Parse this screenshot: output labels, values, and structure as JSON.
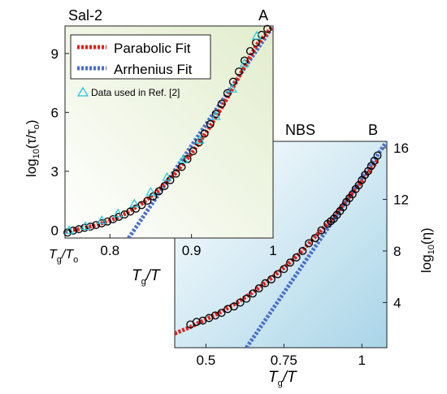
{
  "chart_data": [
    {
      "type": "scatter",
      "panel_label": "A",
      "title": "Sal-2",
      "ylabel": "log10(τ/τo)",
      "ylabel_parts": {
        "base": "log",
        "sub": "10",
        "expr": "(τ/τ",
        "sub2": "o",
        "close": ")"
      },
      "xlabel_parts": {
        "a": "T",
        "a_sub": "g",
        "b": "/T"
      },
      "x_origin_label": {
        "a": "T",
        "a_sub": "g",
        "b": "/T",
        "b_sub": "o"
      },
      "xlim": [
        0.745,
        1.0
      ],
      "ylim": [
        -0.4,
        10.4
      ],
      "xticks": [
        {
          "v": 0.8,
          "label": "0.8"
        },
        {
          "v": 0.9,
          "label": "0.9"
        },
        {
          "v": 1.0,
          "label": "1"
        }
      ],
      "yticks": [
        {
          "v": 0,
          "label": "0"
        },
        {
          "v": 3,
          "label": "3"
        },
        {
          "v": 6,
          "label": "6"
        },
        {
          "v": 9,
          "label": "9"
        }
      ],
      "legend": {
        "placement": "top-left",
        "items": [
          "Parabolic Fit",
          "Arrhenius Fit"
        ],
        "extra": "Data used in Ref. [2]"
      },
      "fits": {
        "parabolic": {
          "color": "#e0201b",
          "x": [
            0.745,
            0.76,
            0.78,
            0.8,
            0.82,
            0.84,
            0.86,
            0.88,
            0.9,
            0.92,
            0.94,
            0.96,
            0.98,
            1.0
          ],
          "y": [
            -0.05,
            0.04,
            0.22,
            0.48,
            0.86,
            1.38,
            2.05,
            2.88,
            3.9,
            5.1,
            6.45,
            7.95,
            9.45,
            10.4
          ]
        },
        "arrhenius": {
          "color": "#4a6fc7",
          "x": [
            0.823,
            1.0
          ],
          "y": [
            -0.4,
            10.4
          ]
        }
      },
      "series": [
        {
          "name": "data",
          "marker": "circle",
          "color": "#000000",
          "x": [
            0.748,
            0.755,
            0.762,
            0.769,
            0.776,
            0.783,
            0.79,
            0.797,
            0.804,
            0.811,
            0.818,
            0.825,
            0.832,
            0.839,
            0.846,
            0.853,
            0.86,
            0.867,
            0.874,
            0.881,
            0.888,
            0.895,
            0.902,
            0.909,
            0.916,
            0.923,
            0.93,
            0.937,
            0.944,
            0.951,
            0.958,
            0.965,
            0.972,
            0.979,
            0.986,
            0.993
          ],
          "y": [
            -0.12,
            -0.02,
            0.05,
            0.12,
            0.18,
            0.26,
            0.35,
            0.44,
            0.56,
            0.68,
            0.8,
            0.95,
            1.1,
            1.28,
            1.5,
            1.72,
            1.98,
            2.25,
            2.55,
            2.88,
            3.22,
            3.62,
            4.02,
            4.46,
            4.92,
            5.4,
            5.92,
            6.44,
            6.98,
            7.56,
            8.08,
            8.64,
            9.12,
            9.55,
            9.95,
            10.25
          ]
        },
        {
          "name": "Data used in Ref. [2]",
          "marker": "triangle",
          "color": "#20c8dc",
          "x": [
            0.75,
            0.77,
            0.79,
            0.81,
            0.83,
            0.85,
            0.87,
            0.89,
            0.91,
            0.93,
            0.95,
            0.965,
            0.98
          ],
          "y": [
            0.0,
            0.2,
            0.5,
            0.85,
            1.35,
            1.95,
            2.7,
            3.6,
            4.6,
            5.8,
            7.2,
            8.5,
            9.9
          ]
        }
      ]
    },
    {
      "type": "scatter",
      "panel_label": "B",
      "title": "NBS",
      "ylabel": "log10(η)",
      "ylabel_parts": {
        "base": "log",
        "sub": "10",
        "expr": "(η)"
      },
      "xlabel_parts": {
        "a": "T",
        "a_sub": "g",
        "b": "/T"
      },
      "xlim": [
        0.4,
        1.08
      ],
      "ylim": [
        0.5,
        16.5
      ],
      "xticks": [
        {
          "v": 0.5,
          "label": "0.5"
        },
        {
          "v": 0.75,
          "label": "0.75"
        },
        {
          "v": 1.0,
          "label": "1"
        }
      ],
      "yticks": [
        {
          "v": 4,
          "label": "4"
        },
        {
          "v": 8,
          "label": "8"
        },
        {
          "v": 12,
          "label": "12"
        },
        {
          "v": 16,
          "label": "16"
        }
      ],
      "fits": {
        "parabolic": {
          "color": "#e0201b",
          "x": [
            0.4,
            0.45,
            0.5,
            0.55,
            0.6,
            0.65,
            0.7,
            0.75,
            0.8,
            0.85,
            0.9,
            0.95,
            1.0,
            1.05
          ],
          "y": [
            1.6,
            2.1,
            2.7,
            3.3,
            4.0,
            4.8,
            5.7,
            6.7,
            7.8,
            9.1,
            10.4,
            11.9,
            13.4,
            15.0
          ]
        },
        "arrhenius": {
          "color": "#4a6fc7",
          "x": [
            0.63,
            1.08
          ],
          "y": [
            0.5,
            16.5
          ]
        }
      },
      "series": [
        {
          "name": "data",
          "marker": "circle",
          "color": "#000000",
          "x": [
            0.45,
            0.47,
            0.49,
            0.51,
            0.53,
            0.55,
            0.57,
            0.59,
            0.61,
            0.63,
            0.65,
            0.67,
            0.69,
            0.71,
            0.73,
            0.75,
            0.77,
            0.79,
            0.81,
            0.83,
            0.85,
            0.87,
            0.89,
            0.9,
            0.91,
            0.92,
            0.93,
            0.94,
            0.95,
            0.96,
            0.97,
            0.98,
            0.99,
            1.0,
            1.01,
            1.02,
            1.03,
            1.04,
            1.05
          ],
          "y": [
            2.3,
            2.5,
            2.6,
            2.8,
            3.0,
            3.2,
            3.5,
            3.7,
            4.0,
            4.3,
            4.7,
            5.1,
            5.5,
            5.8,
            6.2,
            6.6,
            7.1,
            7.5,
            8.0,
            8.6,
            9.0,
            9.6,
            10.1,
            10.3,
            10.5,
            10.8,
            11.1,
            11.4,
            11.8,
            12.1,
            12.4,
            12.8,
            13.1,
            13.5,
            13.9,
            14.2,
            14.6,
            15.0,
            15.4
          ]
        }
      ]
    }
  ]
}
